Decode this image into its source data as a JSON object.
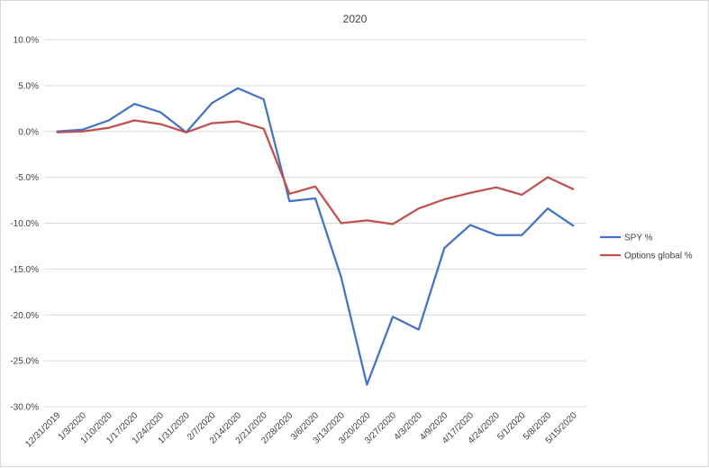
{
  "chart_data": {
    "type": "line",
    "title": "2020",
    "xlabel": "",
    "ylabel": "",
    "ylim": [
      -30,
      10
    ],
    "ytick_step": 5,
    "y_format": "percent-1dp",
    "grid": true,
    "legend_position": "right",
    "categories": [
      "12/31/2019",
      "1/3/2020",
      "1/10/2020",
      "1/17/2020",
      "1/24/2020",
      "1/31/2020",
      "2/7/2020",
      "2/14/2020",
      "2/21/2020",
      "2/28/2020",
      "3/6/2020",
      "3/13/2020",
      "3/20/2020",
      "3/27/2020",
      "4/3/2020",
      "4/9/2020",
      "4/17/2020",
      "4/24/2020",
      "5/1/2020",
      "5/8/2020",
      "5/15/2020"
    ],
    "series": [
      {
        "name": "SPY %",
        "color": "#4472c4",
        "values": [
          0.0,
          0.2,
          1.2,
          3.0,
          2.1,
          -0.1,
          3.1,
          4.7,
          3.5,
          -7.6,
          -7.3,
          -15.9,
          -27.6,
          -20.2,
          -21.6,
          -12.7,
          -10.2,
          -11.3,
          -11.3,
          -8.4,
          -10.3
        ]
      },
      {
        "name": "Options global %",
        "color": "#c0504d",
        "values": [
          -0.1,
          0.0,
          0.4,
          1.2,
          0.8,
          -0.1,
          0.9,
          1.1,
          0.3,
          -6.8,
          -6.0,
          -10.0,
          -9.7,
          -10.1,
          -8.4,
          -7.4,
          -6.7,
          -6.1,
          -6.9,
          -5.0,
          -6.3
        ]
      }
    ]
  }
}
